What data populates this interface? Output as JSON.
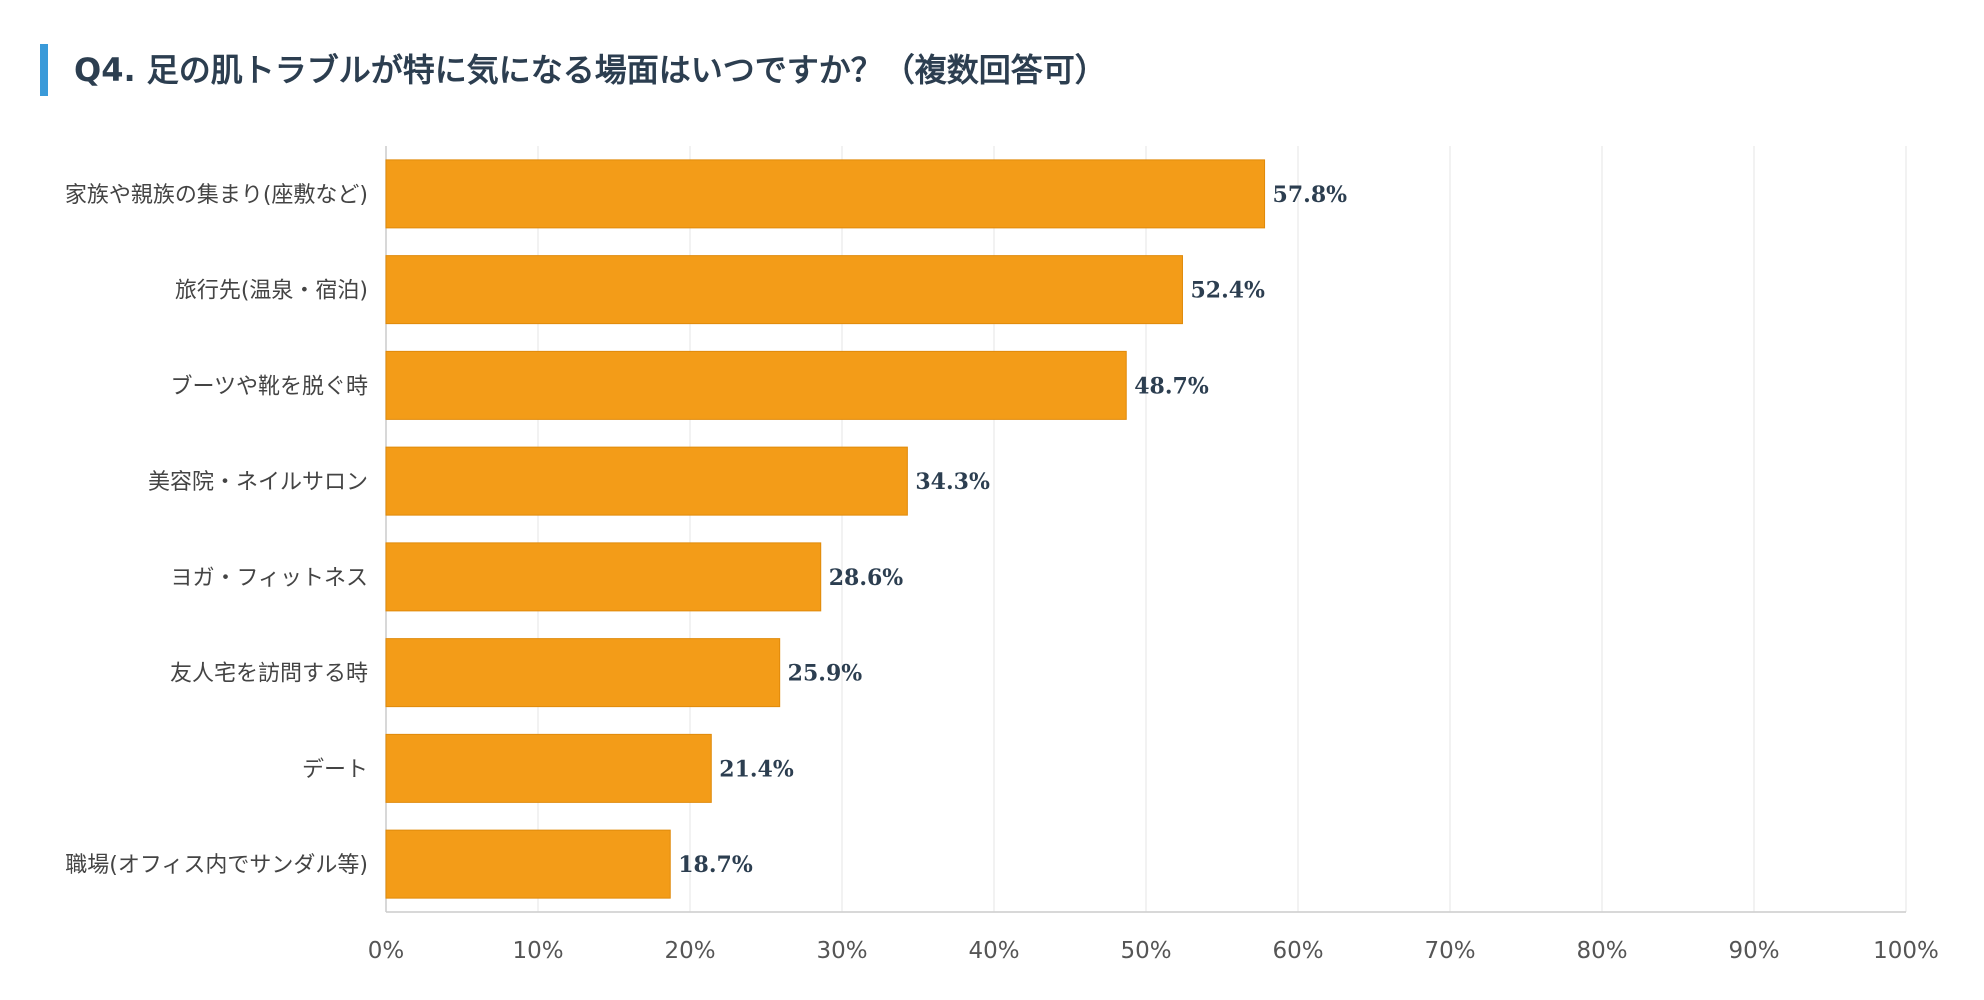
{
  "title": "Q4. 足の肌トラブルが特に気になる場面はいつですか？（複数回答可）",
  "colors": {
    "bar_fill": "#f39c18",
    "bar_stroke": "#e08a0a",
    "accent": "#3a9ad9",
    "grid": "#e6e6e6",
    "axis": "#cccccc"
  },
  "chart_data": {
    "type": "bar",
    "orientation": "horizontal",
    "title": "Q4. 足の肌トラブルが特に気になる場面はいつですか？（複数回答可）",
    "categories": [
      "家族や親族の集まり(座敷など)",
      "旅行先(温泉・宿泊)",
      "ブーツや靴を脱ぐ時",
      "美容院・ネイルサロン",
      "ヨガ・フィットネス",
      "友人宅を訪問する時",
      "デート",
      "職場(オフィス内でサンダル等)"
    ],
    "values": [
      57.8,
      52.4,
      48.7,
      34.3,
      28.6,
      25.9,
      21.4,
      18.7
    ],
    "value_labels": [
      "57.8%",
      "52.4%",
      "48.7%",
      "34.3%",
      "28.6%",
      "25.9%",
      "21.4%",
      "18.7%"
    ],
    "xlim": [
      0,
      100
    ],
    "xticks": [
      0,
      10,
      20,
      30,
      40,
      50,
      60,
      70,
      80,
      90,
      100
    ],
    "xtick_labels": [
      "0%",
      "10%",
      "20%",
      "30%",
      "40%",
      "50%",
      "60%",
      "70%",
      "80%",
      "90%",
      "100%"
    ],
    "xlabel": "",
    "ylabel": "",
    "grid": true,
    "legend": "none"
  }
}
